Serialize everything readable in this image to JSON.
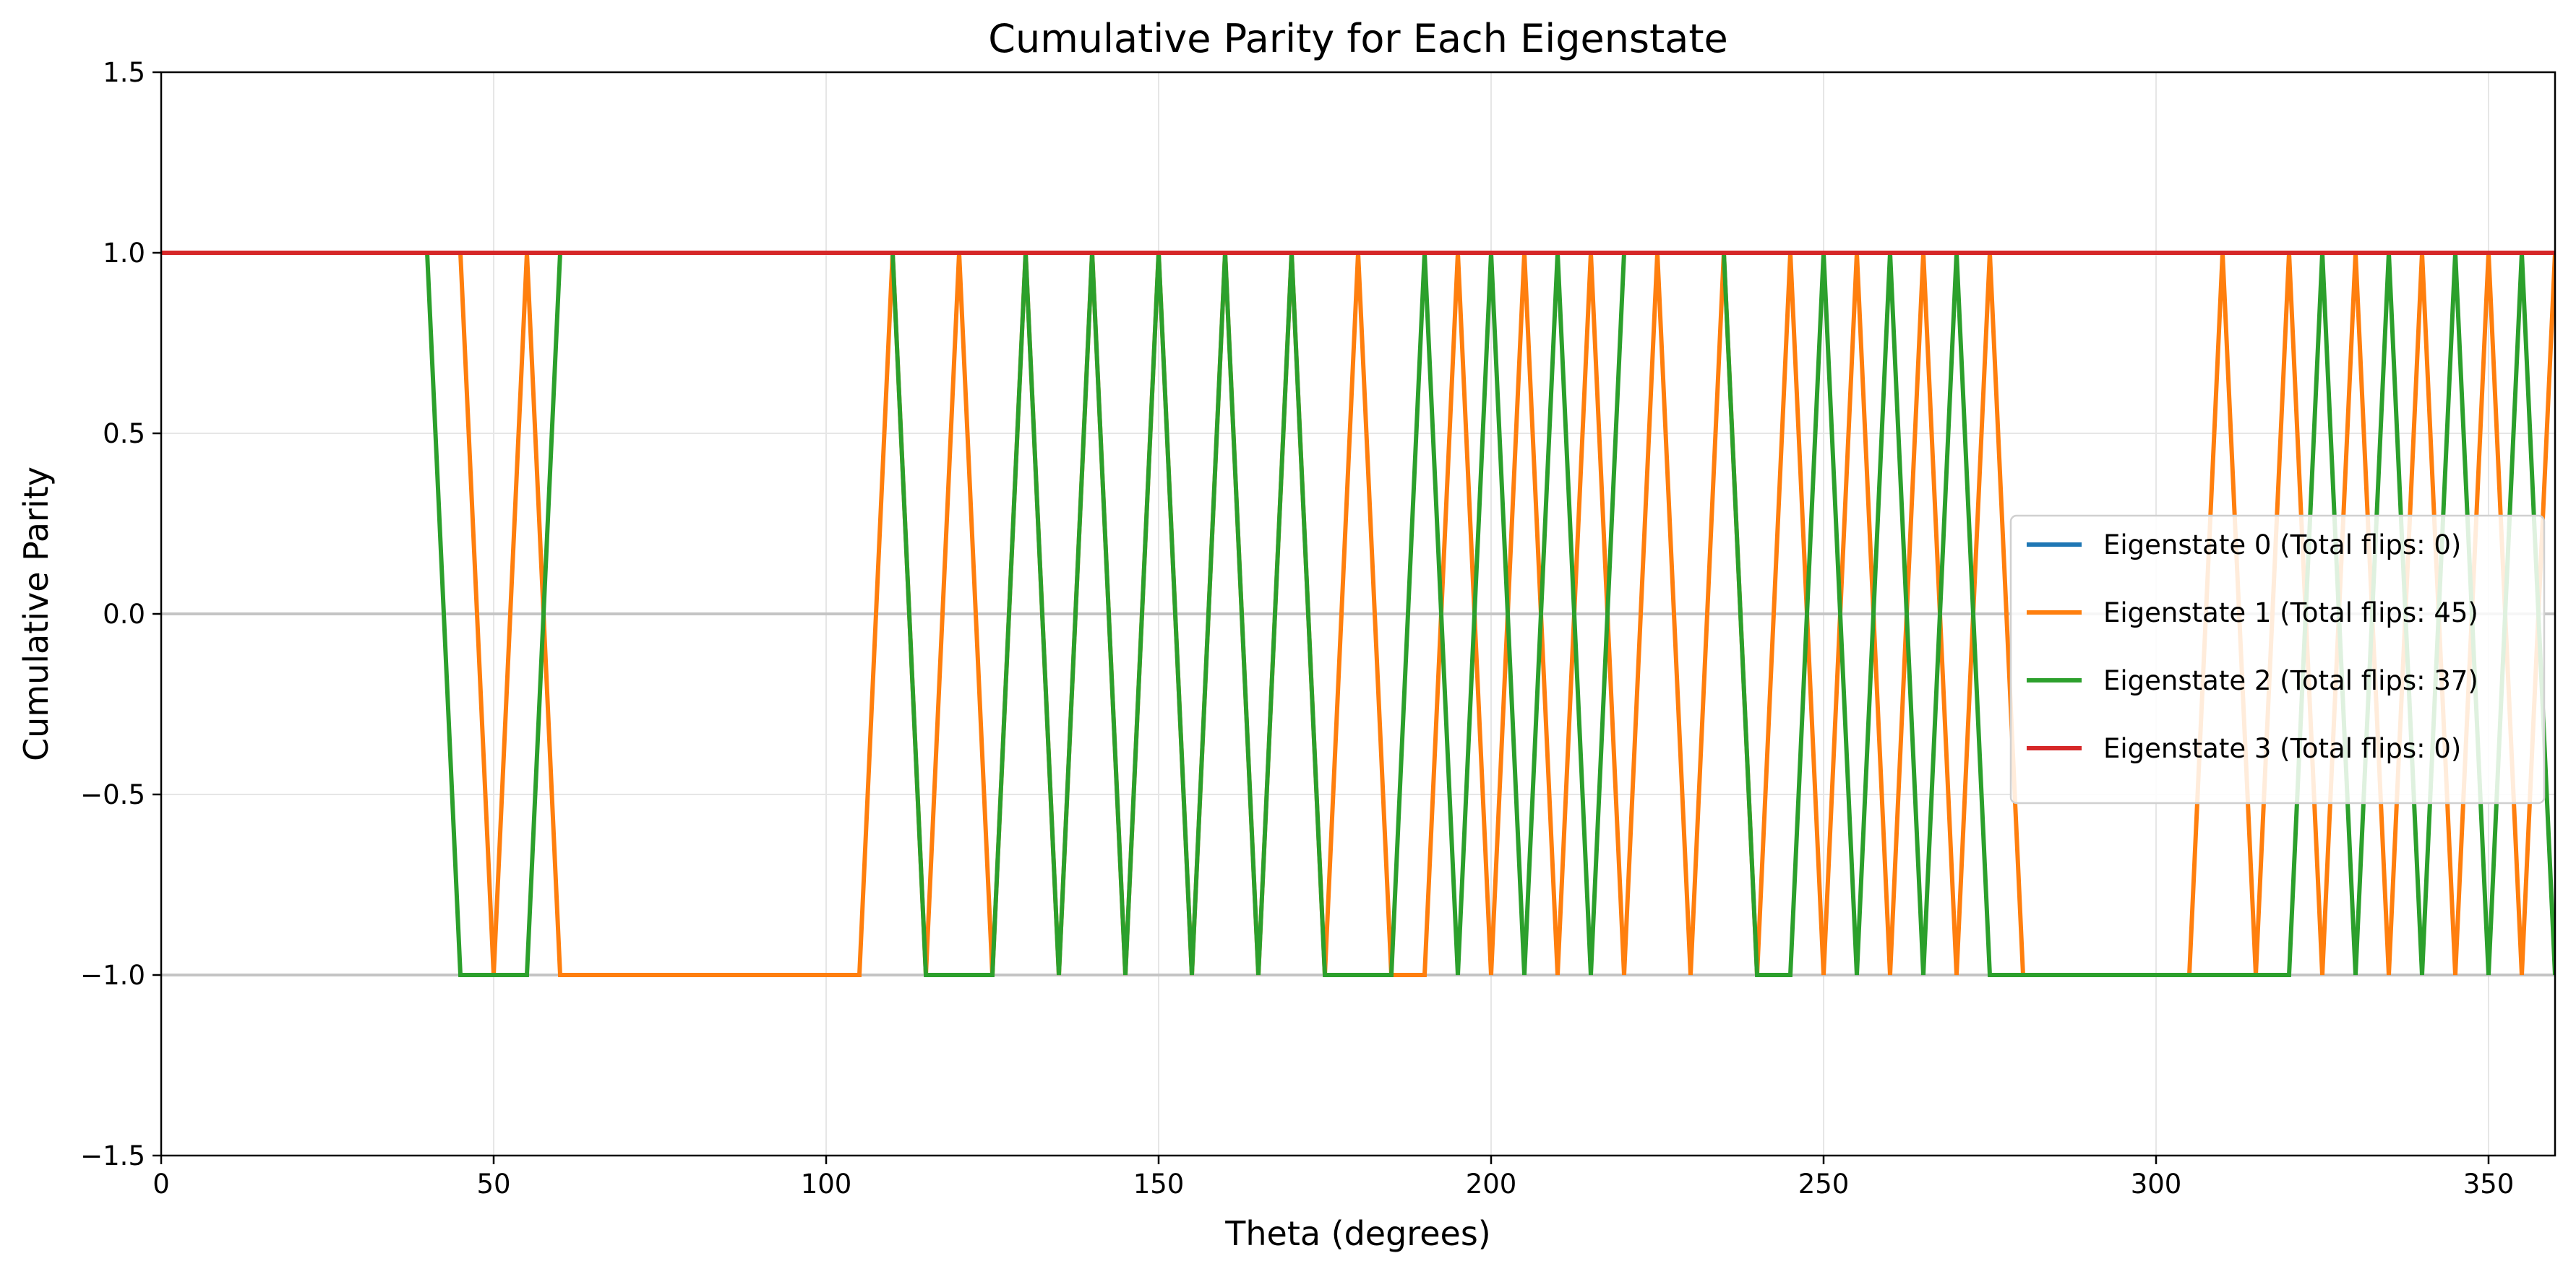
{
  "chart_data": {
    "type": "line",
    "title": "Cumulative Parity for Each Eigenstate",
    "xlabel": "Theta (degrees)",
    "ylabel": "Cumulative Parity",
    "xlim": [
      0,
      360
    ],
    "ylim": [
      -1.5,
      1.5
    ],
    "xticks": [
      0,
      50,
      100,
      150,
      200,
      250,
      300,
      350
    ],
    "xtick_labels": [
      "0",
      "50",
      "100",
      "150",
      "200",
      "250",
      "300",
      "350"
    ],
    "yticks": [
      1.5,
      1.0,
      0.5,
      0.0,
      -0.5,
      -1.0,
      -1.5
    ],
    "ytick_labels": [
      "1.5",
      "1.0",
      "0.5",
      "0.0",
      "−0.5",
      "−1.0",
      "−1.5"
    ],
    "grid": true,
    "reference_lines": [
      0,
      -1
    ],
    "legend_position": "center-right",
    "x": [
      0,
      5,
      10,
      15,
      20,
      25,
      30,
      35,
      40,
      45,
      50,
      55,
      60,
      65,
      70,
      75,
      80,
      85,
      90,
      95,
      100,
      105,
      110,
      115,
      120,
      125,
      130,
      135,
      140,
      145,
      150,
      155,
      160,
      165,
      170,
      175,
      180,
      185,
      190,
      195,
      200,
      205,
      210,
      215,
      220,
      225,
      230,
      235,
      240,
      245,
      250,
      255,
      260,
      265,
      270,
      275,
      280,
      285,
      290,
      295,
      300,
      305,
      310,
      315,
      320,
      325,
      330,
      335,
      340,
      345,
      350,
      355,
      360
    ],
    "series": [
      {
        "name": "Eigenstate 0 (Total flips: 0)",
        "color": "#1f77b4",
        "values": [
          1,
          1,
          1,
          1,
          1,
          1,
          1,
          1,
          1,
          1,
          1,
          1,
          1,
          1,
          1,
          1,
          1,
          1,
          1,
          1,
          1,
          1,
          1,
          1,
          1,
          1,
          1,
          1,
          1,
          1,
          1,
          1,
          1,
          1,
          1,
          1,
          1,
          1,
          1,
          1,
          1,
          1,
          1,
          1,
          1,
          1,
          1,
          1,
          1,
          1,
          1,
          1,
          1,
          1,
          1,
          1,
          1,
          1,
          1,
          1,
          1,
          1,
          1,
          1,
          1,
          1,
          1,
          1,
          1,
          1,
          1,
          1,
          1
        ]
      },
      {
        "name": "Eigenstate 1 (Total flips: 45)",
        "color": "#ff7f0e",
        "values": [
          1,
          1,
          1,
          1,
          1,
          1,
          1,
          1,
          1,
          1,
          -1,
          1,
          -1,
          -1,
          -1,
          -1,
          -1,
          -1,
          -1,
          -1,
          -1,
          -1,
          1,
          -1,
          1,
          -1,
          1,
          -1,
          1,
          -1,
          1,
          -1,
          1,
          -1,
          1,
          -1,
          1,
          -1,
          -1,
          1,
          -1,
          1,
          -1,
          1,
          -1,
          1,
          -1,
          1,
          -1,
          1,
          -1,
          1,
          -1,
          1,
          -1,
          1,
          -1,
          -1,
          -1,
          -1,
          -1,
          -1,
          1,
          -1,
          1,
          -1,
          1,
          -1,
          1,
          -1,
          1,
          -1,
          1
        ]
      },
      {
        "name": "Eigenstate 2 (Total flips: 37)",
        "color": "#2ca02c",
        "values": [
          1,
          1,
          1,
          1,
          1,
          1,
          1,
          1,
          1,
          -1,
          -1,
          -1,
          1,
          1,
          1,
          1,
          1,
          1,
          1,
          1,
          1,
          1,
          1,
          -1,
          -1,
          -1,
          1,
          -1,
          1,
          -1,
          1,
          -1,
          1,
          -1,
          1,
          -1,
          -1,
          -1,
          1,
          -1,
          1,
          -1,
          1,
          -1,
          1,
          1,
          1,
          1,
          -1,
          -1,
          1,
          -1,
          1,
          -1,
          1,
          -1,
          -1,
          -1,
          -1,
          -1,
          -1,
          -1,
          -1,
          -1,
          -1,
          1,
          -1,
          1,
          -1,
          1,
          -1,
          1,
          -1
        ]
      },
      {
        "name": "Eigenstate 3 (Total flips: 0)",
        "color": "#d62728",
        "values": [
          1,
          1,
          1,
          1,
          1,
          1,
          1,
          1,
          1,
          1,
          1,
          1,
          1,
          1,
          1,
          1,
          1,
          1,
          1,
          1,
          1,
          1,
          1,
          1,
          1,
          1,
          1,
          1,
          1,
          1,
          1,
          1,
          1,
          1,
          1,
          1,
          1,
          1,
          1,
          1,
          1,
          1,
          1,
          1,
          1,
          1,
          1,
          1,
          1,
          1,
          1,
          1,
          1,
          1,
          1,
          1,
          1,
          1,
          1,
          1,
          1,
          1,
          1,
          1,
          1,
          1,
          1,
          1,
          1,
          1,
          1,
          1,
          1
        ]
      }
    ]
  }
}
